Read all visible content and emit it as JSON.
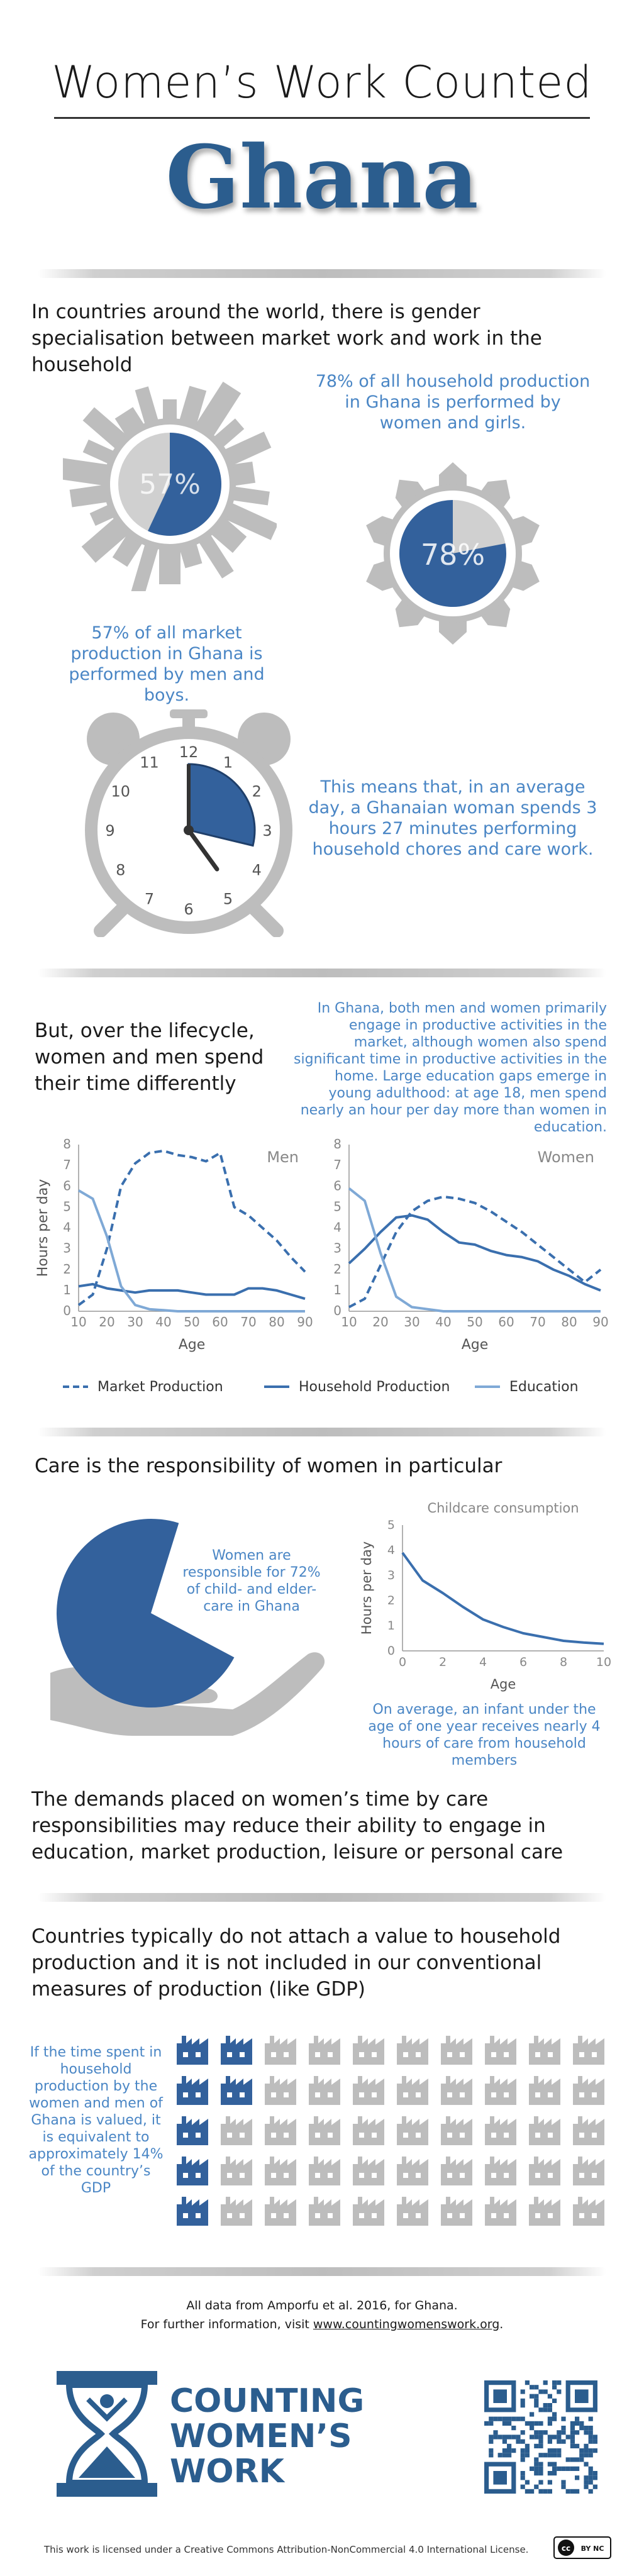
{
  "header": {
    "title": "Women’s Work Counted",
    "country": "Ghana"
  },
  "section1": {
    "intro": "In countries around the world, there is gender specialisation between market work and work in the household",
    "market_pie_label": "57%",
    "market_value": 57,
    "market_caption": "57% of all market production in Ghana is performed by men and boys.",
    "household_caption": "78% of all household production in Ghana is performed by women and girls.",
    "household_pie_label": "78%",
    "household_value": 78,
    "clock_caption": "This means that, in an average day, a Ghanaian woman spends 3 hours 27 minutes performing household chores and care work.",
    "clock_numbers": [
      "12",
      "1",
      "2",
      "3",
      "4",
      "5",
      "6",
      "7",
      "8",
      "9",
      "10",
      "11"
    ]
  },
  "section2": {
    "heading": "But, over the lifecycle, women and men spend their time differently",
    "note": "In Ghana, both men and women primarily engage in productive activities in the market, although women also spend significant time in productive activities in the home. Large education gaps emerge in young adulthood: at age 18, men spend nearly an hour per day more than women in education.",
    "legend": [
      {
        "label": "Market Production",
        "style": "dashed"
      },
      {
        "label": "Household Production",
        "style": "solid"
      },
      {
        "label": "Education",
        "style": "light"
      }
    ]
  },
  "chart_data": [
    {
      "type": "line",
      "title": "Men",
      "xlabel": "Age",
      "ylabel": "Hours per day",
      "x": [
        10,
        15,
        20,
        25,
        30,
        35,
        40,
        45,
        50,
        55,
        60,
        65,
        70,
        75,
        80,
        85,
        90
      ],
      "xticks": [
        "10",
        "20",
        "30",
        "40",
        "50",
        "60",
        "70",
        "80",
        "90"
      ],
      "yticks": [
        "0",
        "1",
        "2",
        "3",
        "4",
        "5",
        "6",
        "7",
        "8"
      ],
      "xlim": [
        10,
        90
      ],
      "ylim": [
        0,
        8
      ],
      "series": [
        {
          "name": "Market Production",
          "values": [
            0.3,
            0.8,
            3.0,
            6.0,
            7.1,
            7.6,
            7.7,
            7.5,
            7.4,
            7.2,
            7.6,
            5.0,
            4.6,
            4.0,
            3.4,
            2.6,
            1.9
          ]
        },
        {
          "name": "Household Production",
          "values": [
            1.2,
            1.3,
            1.1,
            1.0,
            0.9,
            1.0,
            1.0,
            1.0,
            0.9,
            0.8,
            0.8,
            0.8,
            1.1,
            1.1,
            1.0,
            0.8,
            0.6
          ]
        },
        {
          "name": "Education",
          "values": [
            5.8,
            5.4,
            3.6,
            1.2,
            0.3,
            0.1,
            0.05,
            0.0,
            0.0,
            0.0,
            0.0,
            0.0,
            0.0,
            0.0,
            0.0,
            0.0,
            0.0
          ]
        }
      ]
    },
    {
      "type": "line",
      "title": "Women",
      "xlabel": "Age",
      "ylabel": "",
      "x": [
        10,
        15,
        20,
        25,
        30,
        35,
        40,
        45,
        50,
        55,
        60,
        65,
        70,
        75,
        80,
        85,
        90
      ],
      "xticks": [
        "10",
        "20",
        "30",
        "40",
        "50",
        "60",
        "70",
        "80",
        "90"
      ],
      "yticks": [
        "0",
        "1",
        "2",
        "3",
        "4",
        "5",
        "6",
        "7",
        "8"
      ],
      "xlim": [
        10,
        90
      ],
      "ylim": [
        0,
        8
      ],
      "series": [
        {
          "name": "Market Production",
          "values": [
            0.2,
            0.6,
            2.2,
            3.8,
            4.8,
            5.3,
            5.5,
            5.4,
            5.2,
            4.8,
            4.3,
            3.8,
            3.2,
            2.6,
            2.0,
            1.4,
            2.0
          ]
        },
        {
          "name": "Household Production",
          "values": [
            2.3,
            3.0,
            3.8,
            4.5,
            4.6,
            4.4,
            3.8,
            3.3,
            3.2,
            2.9,
            2.7,
            2.6,
            2.4,
            2.0,
            1.7,
            1.3,
            1.0
          ]
        },
        {
          "name": "Education",
          "values": [
            5.9,
            5.3,
            2.8,
            0.7,
            0.2,
            0.1,
            0.0,
            0.0,
            0.0,
            0.0,
            0.0,
            0.0,
            0.0,
            0.0,
            0.0,
            0.0,
            0.0
          ]
        }
      ]
    },
    {
      "type": "line",
      "title": "Childcare consumption",
      "xlabel": "Age",
      "ylabel": "Hours per day",
      "x": [
        0,
        1,
        2,
        3,
        4,
        5,
        6,
        7,
        8,
        9,
        10
      ],
      "xticks": [
        "0",
        "2",
        "4",
        "6",
        "8",
        "10"
      ],
      "yticks": [
        "0",
        "1",
        "2",
        "3",
        "4",
        "5"
      ],
      "xlim": [
        0,
        10
      ],
      "ylim": [
        0,
        5
      ],
      "series": [
        {
          "name": "Childcare consumption",
          "values": [
            3.9,
            2.8,
            2.3,
            1.75,
            1.25,
            0.95,
            0.7,
            0.55,
            0.4,
            0.33,
            0.28
          ]
        }
      ]
    }
  ],
  "section3": {
    "heading": "Care is the responsibility of women in particular",
    "hand_caption": "Women are responsible for 72% of child- and elder-care in Ghana",
    "care_share": 72,
    "infant_caption": "On average, an infant under the age of one year receives nearly 4 hours of care from household members"
  },
  "section4": {
    "demands": "The demands placed on women’s time by care responsibilities may reduce their ability to engage in education, market production, leisure or personal care"
  },
  "section5": {
    "heading": "Countries typically do not attach a value to household production and it is not included in our conventional measures of production (like GDP)",
    "gdp_caption": "If the time spent in household production by the women and men of Ghana is valued, it is equivalent to approximately 14% of the country’s GDP",
    "gdp_share": 14,
    "icon_total": 50,
    "icon_highlighted": 7
  },
  "footer": {
    "source": "All data from Amporfu et al. 2016, for Ghana.",
    "info_prefix": "For further information, visit ",
    "link": "www.countingwomenswork.org",
    "info_suffix": ".",
    "logo_line1": "COUNTING",
    "logo_line2": "WOMEN’S",
    "logo_line3": "WORK",
    "license": "This work is licensed under a Creative Commons Attribution-NonCommercial 4.0 International License.",
    "cc_badge": "cc",
    "cc_badge_terms": "BY NC"
  },
  "colors": {
    "accent": "#4a86c5",
    "dark_blue": "#2b5d8e",
    "pie_blue": "#33619c",
    "grey": "#bdbdbd"
  }
}
